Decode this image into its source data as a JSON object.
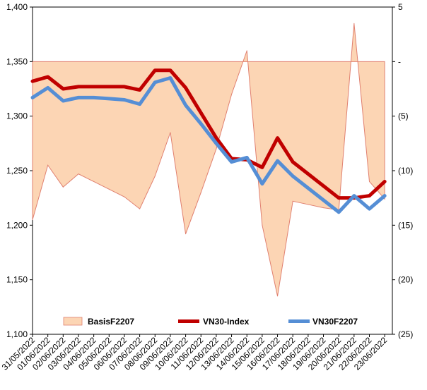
{
  "chart_data": {
    "type": "line",
    "title": "",
    "x": [
      "31/05/2022",
      "01/06/2022",
      "02/06/2022",
      "03/06/2022",
      "04/06/2022",
      "05/06/2022",
      "06/06/2022",
      "07/06/2022",
      "08/06/2022",
      "09/06/2022",
      "10/06/2022",
      "11/06/2022",
      "12/06/2022",
      "13/06/2022",
      "14/06/2022",
      "15/06/2022",
      "16/06/2022",
      "17/06/2022",
      "18/06/2022",
      "19/06/2022",
      "20/06/2022",
      "21/06/2022",
      "22/06/2022",
      "23/06/2022"
    ],
    "y_left": {
      "ylim": [
        1100,
        1400
      ],
      "ticks": [
        "1,100",
        "1,150",
        "1,200",
        "1,250",
        "1,300",
        "1,350",
        "1,400"
      ],
      "tick_values": [
        1100,
        1150,
        1200,
        1250,
        1300,
        1350,
        1400
      ]
    },
    "y_right": {
      "ylim": [
        -25,
        5
      ],
      "ticks": [
        "(25)",
        "(20)",
        "(15)",
        "(10)",
        "(5)",
        "-",
        "5"
      ],
      "tick_values": [
        -25,
        -20,
        -15,
        -10,
        -5,
        0,
        5
      ]
    },
    "series": [
      {
        "name": "BasisF2207",
        "axis": "right",
        "kind": "area",
        "color": "#fcd5b4",
        "edge": "#e08070",
        "values": [
          -14.5,
          -9.5,
          -11.5,
          -10.3,
          -11.0,
          -11.7,
          -12.4,
          -13.5,
          -10.5,
          -6.5,
          -15.8,
          -12.0,
          -8.0,
          -3.0,
          1.0,
          -15.0,
          -21.5,
          -12.8,
          -13.1,
          -13.4,
          -13.6,
          3.5,
          -11.0,
          -12.6
        ]
      },
      {
        "name": "VN30-Index",
        "axis": "left",
        "kind": "line",
        "color": "#c00000",
        "values": [
          1332,
          1336,
          1325,
          1327,
          1327,
          1327,
          1327,
          1324,
          1342,
          1342,
          1326,
          1303,
          1280,
          1261,
          1260,
          1253,
          1280,
          1258,
          1247,
          1236,
          1225,
          1225,
          1227,
          1240
        ]
      },
      {
        "name": "VN30F2207",
        "axis": "left",
        "kind": "line",
        "color": "#558ed5",
        "values": [
          1317,
          1326,
          1314,
          1317,
          1317,
          1316,
          1315,
          1311,
          1331,
          1335,
          1310,
          1293,
          1275,
          1258,
          1262,
          1238,
          1259,
          1245,
          1234,
          1223,
          1212,
          1227,
          1215,
          1227
        ]
      }
    ],
    "legend": {
      "position": "bottom-inside",
      "entries": [
        "BasisF2207",
        "VN30-Index",
        "VN30F2207"
      ]
    },
    "grid": false
  }
}
